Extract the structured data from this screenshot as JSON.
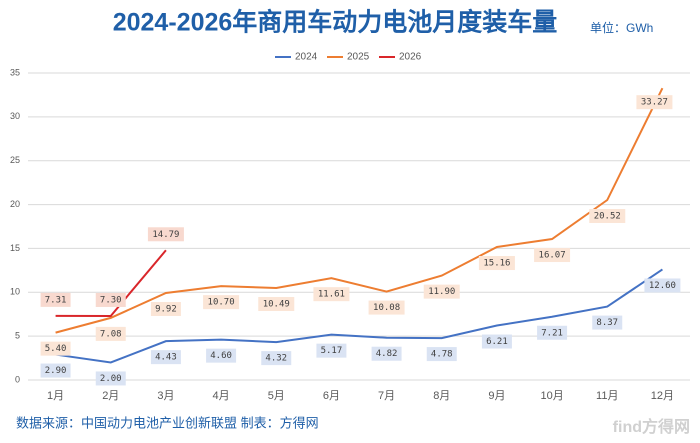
{
  "chart_data": {
    "type": "line",
    "title": "2024-2026年商用车动力电池月度装车量",
    "subtitle": "单位：GWh",
    "source": "数据来源：中国动力电池产业创新联盟 制表：方得网",
    "watermark": "find方得网",
    "categories": [
      "1月",
      "2月",
      "3月",
      "4月",
      "5月",
      "6月",
      "7月",
      "8月",
      "9月",
      "10月",
      "11月",
      "12月"
    ],
    "series": [
      {
        "name": "2024",
        "color": "#4472c4",
        "label_bg": "#dae3f3",
        "values": [
          2.9,
          2.0,
          4.43,
          4.6,
          4.32,
          5.17,
          4.82,
          4.78,
          6.21,
          7.21,
          8.37,
          12.6
        ],
        "value_labels": [
          "2.90",
          "2.00",
          "4.43",
          "4.60",
          "4.32",
          "5.17",
          "4.82",
          "4.78",
          "6.21",
          "7.21",
          "8.37",
          "12.60"
        ]
      },
      {
        "name": "2025",
        "color": "#ed7d31",
        "label_bg": "#fbe5d6",
        "values": [
          5.4,
          7.08,
          9.92,
          10.7,
          10.49,
          11.61,
          10.08,
          11.9,
          15.16,
          16.07,
          20.52,
          33.27
        ],
        "value_labels": [
          "5.40",
          "7.08",
          "9.92",
          "10.70",
          "10.49",
          "11.61",
          "10.08",
          "11.90",
          "15.16",
          "16.07",
          "20.52",
          "33.27"
        ]
      },
      {
        "name": "2026",
        "color": "#d9262a",
        "label_bg": "#f8d9cf",
        "values": [
          7.31,
          7.3,
          14.79,
          null,
          null,
          null,
          null,
          null,
          null,
          null,
          null,
          null
        ],
        "value_labels": [
          "7.31",
          "7.30",
          "14.79",
          null,
          null,
          null,
          null,
          null,
          null,
          null,
          null,
          null
        ]
      }
    ],
    "ylim": [
      0,
      35
    ],
    "yticks": [
      0,
      5,
      10,
      15,
      20,
      25,
      30,
      35
    ],
    "grid": true,
    "legend": "top"
  }
}
